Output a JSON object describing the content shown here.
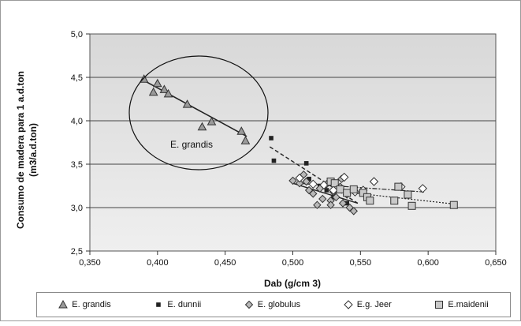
{
  "chart_data": {
    "type": "scatter",
    "xlabel": "Dab (g/cm 3)",
    "ylabel_line1": "Consumo de madera para 1 a.d.ton",
    "ylabel_line2": "(m3/a.d.ton)",
    "xlim": [
      0.35,
      0.65
    ],
    "ylim": [
      2.5,
      5.0
    ],
    "x_ticks": [
      "0,350",
      "0,400",
      "0,450",
      "0,500",
      "0,550",
      "0,600",
      "0,650"
    ],
    "y_ticks": [
      "2,5",
      "3,0",
      "3,5",
      "4,0",
      "4,5",
      "5,0"
    ],
    "annotation": "E. grandis",
    "legend_position": "bottom",
    "series": [
      {
        "name": "E. grandis",
        "marker": "triangle",
        "points": [
          [
            0.39,
            4.48
          ],
          [
            0.397,
            4.33
          ],
          [
            0.4,
            4.43
          ],
          [
            0.405,
            4.36
          ],
          [
            0.408,
            4.31
          ],
          [
            0.422,
            4.19
          ],
          [
            0.433,
            3.93
          ],
          [
            0.44,
            3.99
          ],
          [
            0.462,
            3.88
          ],
          [
            0.465,
            3.77
          ]
        ],
        "trend": [
          [
            0.388,
            4.48
          ],
          [
            0.466,
            3.82
          ]
        ]
      },
      {
        "name": "E. dunnii",
        "marker": "small-square",
        "points": [
          [
            0.484,
            3.8
          ],
          [
            0.486,
            3.54
          ],
          [
            0.51,
            3.51
          ],
          [
            0.512,
            3.33
          ],
          [
            0.52,
            3.25
          ],
          [
            0.525,
            3.2
          ],
          [
            0.53,
            3.12
          ],
          [
            0.54,
            3.05
          ]
        ],
        "trend": [
          [
            0.483,
            3.7
          ],
          [
            0.548,
            3.05
          ]
        ]
      },
      {
        "name": "E. globulus",
        "marker": "diamond",
        "points": [
          [
            0.5,
            3.31
          ],
          [
            0.505,
            3.28
          ],
          [
            0.508,
            3.38
          ],
          [
            0.51,
            3.3
          ],
          [
            0.512,
            3.2
          ],
          [
            0.515,
            3.16
          ],
          [
            0.518,
            3.03
          ],
          [
            0.52,
            3.22
          ],
          [
            0.522,
            3.1
          ],
          [
            0.525,
            3.27
          ],
          [
            0.528,
            3.08
          ],
          [
            0.53,
            3.18
          ],
          [
            0.532,
            3.12
          ],
          [
            0.535,
            3.24
          ],
          [
            0.537,
            3.05
          ],
          [
            0.54,
            3.15
          ],
          [
            0.542,
            3.0
          ],
          [
            0.545,
            2.96
          ],
          [
            0.536,
            3.33
          ],
          [
            0.528,
            3.03
          ]
        ],
        "trend": [
          [
            0.5,
            3.28
          ],
          [
            0.548,
            3.05
          ]
        ]
      },
      {
        "name": "E.g. Jeer",
        "marker": "open-diamond",
        "points": [
          [
            0.505,
            3.34
          ],
          [
            0.515,
            3.27
          ],
          [
            0.523,
            3.26
          ],
          [
            0.53,
            3.2
          ],
          [
            0.538,
            3.35
          ],
          [
            0.546,
            3.18
          ],
          [
            0.552,
            3.2
          ],
          [
            0.56,
            3.3
          ],
          [
            0.58,
            3.24
          ],
          [
            0.596,
            3.22
          ]
        ],
        "trend": [
          [
            0.503,
            3.28
          ],
          [
            0.597,
            3.18
          ]
        ]
      },
      {
        "name": "E.maidenii",
        "marker": "open-square",
        "points": [
          [
            0.528,
            3.3
          ],
          [
            0.531,
            3.28
          ],
          [
            0.535,
            3.21
          ],
          [
            0.54,
            3.17
          ],
          [
            0.545,
            3.21
          ],
          [
            0.552,
            3.17
          ],
          [
            0.555,
            3.12
          ],
          [
            0.557,
            3.08
          ],
          [
            0.575,
            3.08
          ],
          [
            0.578,
            3.24
          ],
          [
            0.585,
            3.15
          ],
          [
            0.588,
            3.02
          ],
          [
            0.619,
            3.03
          ]
        ],
        "trend": [
          [
            0.527,
            3.2
          ],
          [
            0.62,
            3.04
          ]
        ]
      }
    ]
  },
  "colors": {
    "plot_bg_top": "#d8d8d8",
    "plot_bg_bottom": "#efefef",
    "grid": "#444444",
    "marker": "#333333",
    "marker_fill_grandis": "#9a9a9a",
    "marker_fill_maidenii": "#c9c9c9"
  }
}
